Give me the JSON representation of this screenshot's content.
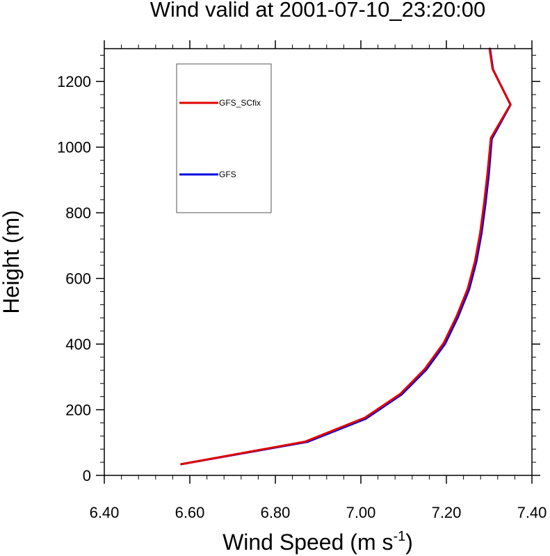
{
  "chart_data": {
    "type": "line",
    "title": "Wind valid at 2001-07-10_23:20:00",
    "xlabel_main": "Wind Speed (m s",
    "xlabel_sup": "-1",
    "xlabel_close": ")",
    "ylabel": "Height (m)",
    "xlim": [
      6.4,
      7.4
    ],
    "ylim": [
      0,
      1300
    ],
    "x_ticks": [
      6.4,
      6.6,
      6.8,
      7.0,
      7.2,
      7.4
    ],
    "x_tick_labels": [
      "6.40",
      "6.60",
      "6.80",
      "7.00",
      "7.20",
      "7.40"
    ],
    "x_minor_step": 0.04,
    "y_ticks": [
      0,
      200,
      400,
      600,
      800,
      1000,
      1200
    ],
    "y_tick_labels": [
      "0",
      "200",
      "400",
      "600",
      "800",
      "1000",
      "1200"
    ],
    "y_minor_step": 40,
    "grid": false,
    "legend_position": "top-left",
    "series": [
      {
        "name": "GFS",
        "color": "#0000e0",
        "points": [
          [
            6.58,
            34
          ],
          [
            6.875,
            102
          ],
          [
            7.012,
            173
          ],
          [
            7.095,
            246
          ],
          [
            7.153,
            322
          ],
          [
            7.197,
            401
          ],
          [
            7.227,
            482
          ],
          [
            7.253,
            566
          ],
          [
            7.27,
            650
          ],
          [
            7.282,
            736
          ],
          [
            7.291,
            824
          ],
          [
            7.299,
            915
          ],
          [
            7.306,
            1025
          ],
          [
            7.35,
            1129
          ],
          [
            7.309,
            1237
          ],
          [
            7.302,
            1300
          ]
        ]
      },
      {
        "name": "GFS_SCfix",
        "color": "#e00000",
        "points": [
          [
            6.58,
            34
          ],
          [
            6.87,
            103
          ],
          [
            7.01,
            176
          ],
          [
            7.092,
            248
          ],
          [
            7.15,
            325
          ],
          [
            7.194,
            404
          ],
          [
            7.224,
            485
          ],
          [
            7.25,
            569
          ],
          [
            7.267,
            653
          ],
          [
            7.279,
            739
          ],
          [
            7.288,
            827
          ],
          [
            7.296,
            918
          ],
          [
            7.304,
            1028
          ],
          [
            7.35,
            1130
          ],
          [
            7.308,
            1238
          ],
          [
            7.301,
            1300
          ]
        ]
      }
    ]
  }
}
